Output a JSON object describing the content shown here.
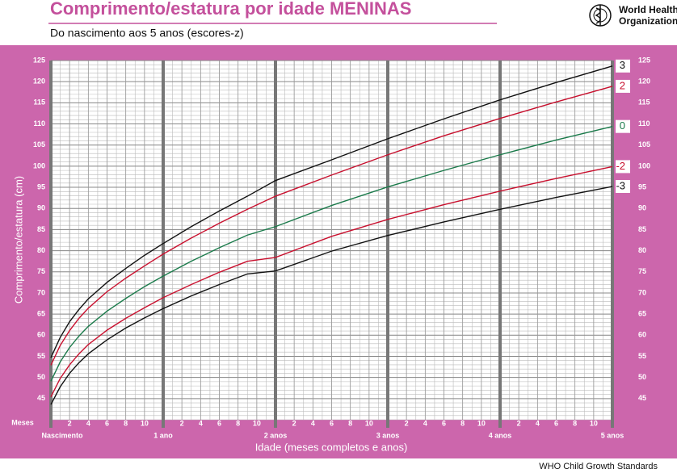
{
  "header": {
    "title": "Comprimento/estatura por idade MENINAS",
    "subtitle": "Do nascimento aos 5 anos (escores-z)",
    "organization": [
      "World Health",
      "Organization"
    ]
  },
  "footer": "WHO Child Growth Standards",
  "chart_data": {
    "type": "line",
    "ylabel": "Comprimento/estatura (cm)",
    "xlabel": "Idade (meses completos e anos)",
    "x_unit_label": "Meses",
    "x": [
      0,
      1,
      2,
      3,
      4,
      6,
      8,
      10,
      12,
      15,
      18,
      21,
      24,
      30,
      36,
      42,
      48,
      54,
      60
    ],
    "series": [
      {
        "name": "3",
        "color": "#111111",
        "values": [
          54.7,
          59.5,
          63.2,
          66.1,
          68.6,
          72.5,
          75.8,
          78.9,
          81.7,
          85.7,
          89.4,
          92.9,
          96.6,
          101.5,
          106.5,
          111.2,
          115.7,
          119.8,
          123.7
        ]
      },
      {
        "name": "2",
        "color": "#c8102e",
        "values": [
          52.9,
          57.6,
          61.1,
          64.0,
          66.4,
          70.3,
          73.5,
          76.4,
          79.2,
          83.0,
          86.5,
          89.8,
          92.9,
          97.9,
          102.7,
          107.2,
          111.3,
          115.2,
          118.9
        ]
      },
      {
        "name": "0",
        "color": "#1a7a4a",
        "values": [
          49.1,
          53.7,
          57.1,
          59.8,
          62.1,
          65.7,
          68.7,
          71.5,
          74.0,
          77.5,
          80.7,
          83.7,
          85.7,
          90.7,
          95.1,
          99.0,
          102.7,
          106.2,
          109.4
        ]
      },
      {
        "name": "-2",
        "color": "#c8102e",
        "values": [
          45.4,
          49.8,
          53.0,
          55.6,
          57.8,
          61.2,
          64.0,
          66.5,
          68.9,
          72.0,
          74.9,
          77.5,
          78.4,
          83.4,
          87.4,
          90.9,
          94.1,
          97.1,
          99.9
        ]
      },
      {
        "name": "-3",
        "color": "#111111",
        "values": [
          43.6,
          47.8,
          51.0,
          53.5,
          55.6,
          58.9,
          61.7,
          64.1,
          66.3,
          69.3,
          72.0,
          74.5,
          75.2,
          79.9,
          83.6,
          86.8,
          89.8,
          92.6,
          95.2
        ]
      }
    ],
    "xlim": [
      0,
      60
    ],
    "ylim": [
      40,
      125
    ],
    "yticks": [
      45,
      50,
      55,
      60,
      65,
      70,
      75,
      80,
      85,
      90,
      95,
      100,
      105,
      110,
      115,
      120,
      125
    ],
    "xticks": [
      2,
      4,
      6,
      8,
      10,
      {
        "value": 14,
        "label": "2"
      },
      {
        "value": 16,
        "label": "4"
      },
      {
        "value": 18,
        "label": "6"
      },
      {
        "value": 20,
        "label": "8"
      },
      {
        "value": 22,
        "label": "10"
      },
      {
        "value": 26,
        "label": "2"
      },
      {
        "value": 28,
        "label": "4"
      },
      {
        "value": 30,
        "label": "6"
      },
      {
        "value": 32,
        "label": "8"
      },
      {
        "value": 34,
        "label": "10"
      },
      {
        "value": 38,
        "label": "2"
      },
      {
        "value": 40,
        "label": "4"
      },
      {
        "value": 42,
        "label": "6"
      },
      {
        "value": 44,
        "label": "8"
      },
      {
        "value": 46,
        "label": "10"
      },
      {
        "value": 50,
        "label": "2"
      },
      {
        "value": 52,
        "label": "4"
      },
      {
        "value": 54,
        "label": "6"
      },
      {
        "value": 56,
        "label": "8"
      },
      {
        "value": 58,
        "label": "10"
      }
    ],
    "year_ticks": [
      {
        "value": 0,
        "label": "Nascimento"
      },
      {
        "value": 12,
        "label": "1 ano"
      },
      {
        "value": 24,
        "label": "2 anos"
      },
      {
        "value": 36,
        "label": "3 anos"
      },
      {
        "value": 48,
        "label": "4 anos"
      },
      {
        "value": 60,
        "label": "5 anos"
      }
    ],
    "grid": true
  }
}
